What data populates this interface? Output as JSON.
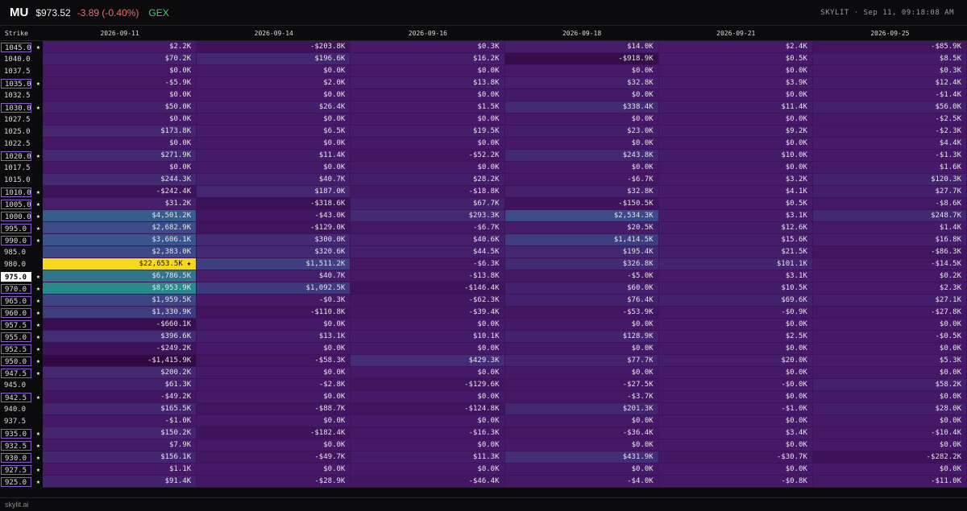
{
  "header": {
    "ticker": "MU",
    "price": "$973.52",
    "change": "-3.89 (-0.40%)",
    "metric": "GEX",
    "brand": "SKYLIT · Sep 11, 09:18:08 AM"
  },
  "table": {
    "columns": [
      "Strike",
      "2026-09-11",
      "2026-09-14",
      "2026-09-16",
      "2026-09-18",
      "2026-09-21",
      "2026-09-25"
    ],
    "rows": [
      {
        "strike": "1045.0",
        "star": "★",
        "values": [
          "$2.2K",
          "-$203.8K",
          "$0.3K",
          "$14.0K",
          "$2.4K",
          "-$85.9K"
        ]
      },
      {
        "strike": "1040.0",
        "values": [
          "$70.2K",
          "$196.6K",
          "$16.2K",
          "-$918.9K",
          "$0.5K",
          "$8.5K"
        ]
      },
      {
        "strike": "1037.5",
        "values": [
          "$0.0K",
          "$0.0K",
          "$0.0K",
          "$0.0K",
          "$0.0K",
          "$0.3K"
        ]
      },
      {
        "strike": "1035.0",
        "star": "★",
        "values": [
          "-$5.9K",
          "$2.0K",
          "$13.8K",
          "$32.8K",
          "$3.9K",
          "$12.4K"
        ]
      },
      {
        "strike": "1032.5",
        "values": [
          "$0.0K",
          "$0.0K",
          "$0.0K",
          "$0.0K",
          "$0.0K",
          "-$1.4K"
        ]
      },
      {
        "strike": "1030.0",
        "star": "★",
        "values": [
          "$50.0K",
          "$26.4K",
          "$1.5K",
          "$338.4K",
          "$11.4K",
          "$56.0K"
        ]
      },
      {
        "strike": "1027.5",
        "values": [
          "$0.0K",
          "$0.0K",
          "$0.0K",
          "$0.0K",
          "$0.0K",
          "-$2.5K"
        ]
      },
      {
        "strike": "1025.0",
        "values": [
          "$173.8K",
          "$6.5K",
          "$19.5K",
          "$23.0K",
          "$9.2K",
          "-$2.3K"
        ]
      },
      {
        "strike": "1022.5",
        "values": [
          "$0.0K",
          "$0.0K",
          "$0.0K",
          "$0.0K",
          "$0.0K",
          "$4.4K"
        ]
      },
      {
        "strike": "1020.0",
        "star": "★",
        "values": [
          "$271.9K",
          "$11.4K",
          "-$52.2K",
          "$243.8K",
          "$10.0K",
          "-$1.3K"
        ]
      },
      {
        "strike": "1017.5",
        "values": [
          "$0.0K",
          "$0.0K",
          "$0.0K",
          "$0.0K",
          "$0.0K",
          "$1.6K"
        ]
      },
      {
        "strike": "1015.0",
        "values": [
          "$244.3K",
          "$40.7K",
          "$28.2K",
          "-$6.7K",
          "$3.2K",
          "$120.3K"
        ]
      },
      {
        "strike": "1010.0",
        "star": "★",
        "values": [
          "-$242.4K",
          "$187.0K",
          "-$18.8K",
          "$32.8K",
          "$4.1K",
          "$27.7K"
        ]
      },
      {
        "strike": "1005.0",
        "star": "★",
        "values": [
          "$31.2K",
          "-$318.6K",
          "$67.7K",
          "-$150.5K",
          "$0.5K",
          "-$8.6K"
        ]
      },
      {
        "strike": "1000.0",
        "star": "★",
        "values": [
          "$4,501.2K",
          "-$43.0K",
          "$293.3K",
          "$2,534.3K",
          "$3.1K",
          "$248.7K"
        ]
      },
      {
        "strike": "995.0",
        "star": "★",
        "values": [
          "$2,682.9K",
          "-$129.0K",
          "-$6.7K",
          "$20.5K",
          "$12.6K",
          "$1.4K"
        ]
      },
      {
        "strike": "990.0",
        "star": "★",
        "values": [
          "$3,606.1K",
          "$300.0K",
          "$40.6K",
          "$1,414.5K",
          "$15.6K",
          "$16.8K"
        ]
      },
      {
        "strike": "985.0",
        "values": [
          "$2,383.0K",
          "$320.6K",
          "$44.5K",
          "$195.4K",
          "$21.5K",
          "-$86.3K"
        ]
      },
      {
        "strike": "980.0",
        "cell_star": "★",
        "values": [
          "$22,653.5K",
          "$1,511.2K",
          "-$6.3K",
          "$326.8K",
          "$101.1K",
          "-$14.5K"
        ]
      },
      {
        "strike": "975.0",
        "star": "★",
        "values": [
          "$6,786.5K",
          "$40.7K",
          "-$13.8K",
          "-$5.0K",
          "$3.1K",
          "$0.2K"
        ]
      },
      {
        "strike": "970.0",
        "star": "★",
        "values": [
          "$8,953.9K",
          "$1,092.5K",
          "-$146.4K",
          "$60.0K",
          "$10.5K",
          "$2.3K"
        ]
      },
      {
        "strike": "965.0",
        "star": "★",
        "values": [
          "$1,959.5K",
          "-$0.3K",
          "-$62.3K",
          "$76.4K",
          "$69.6K",
          "$27.1K"
        ]
      },
      {
        "strike": "960.0",
        "star": "★",
        "values": [
          "$1,330.9K",
          "-$110.8K",
          "-$39.4K",
          "-$53.9K",
          "-$0.9K",
          "-$27.8K"
        ]
      },
      {
        "strike": "957.5",
        "star": "★",
        "values": [
          "-$660.1K",
          "$0.0K",
          "$0.0K",
          "$0.0K",
          "$0.0K",
          "$0.0K"
        ]
      },
      {
        "strike": "955.0",
        "star": "★",
        "values": [
          "$396.6K",
          "$13.1K",
          "$10.1K",
          "$128.9K",
          "$2.5K",
          "-$0.5K"
        ]
      },
      {
        "strike": "952.5",
        "star": "★",
        "values": [
          "-$249.2K",
          "$0.0K",
          "$0.0K",
          "$0.0K",
          "$0.0K",
          "$0.0K"
        ]
      },
      {
        "strike": "950.0",
        "star": "★",
        "values": [
          "-$1,415.9K",
          "-$58.3K",
          "$429.3K",
          "$77.7K",
          "$20.0K",
          "$5.3K"
        ]
      },
      {
        "strike": "947.5",
        "star": "★",
        "values": [
          "$200.2K",
          "$0.0K",
          "$0.0K",
          "$0.0K",
          "$0.0K",
          "$0.0K"
        ]
      },
      {
        "strike": "945.0",
        "values": [
          "$61.3K",
          "-$2.8K",
          "-$129.6K",
          "-$27.5K",
          "-$0.0K",
          "$58.2K"
        ]
      },
      {
        "strike": "942.5",
        "star": "★",
        "values": [
          "-$49.2K",
          "$0.0K",
          "$0.0K",
          "-$3.7K",
          "$0.0K",
          "$0.0K"
        ]
      },
      {
        "strike": "940.0",
        "values": [
          "$165.5K",
          "-$88.7K",
          "-$124.8K",
          "$201.3K",
          "-$1.0K",
          "$28.0K"
        ]
      },
      {
        "strike": "937.5",
        "values": [
          "-$1.0K",
          "$0.0K",
          "$0.0K",
          "$0.0K",
          "$0.0K",
          "$0.0K"
        ]
      },
      {
        "strike": "935.0",
        "star": "★",
        "values": [
          "$150.2K",
          "-$182.4K",
          "-$16.3K",
          "-$36.4K",
          "$3.4K",
          "-$10.4K"
        ]
      },
      {
        "strike": "932.5",
        "star": "★",
        "values": [
          "$7.9K",
          "$0.0K",
          "$0.0K",
          "$0.0K",
          "$0.0K",
          "$0.0K"
        ]
      },
      {
        "strike": "930.0",
        "star": "★",
        "values": [
          "$156.1K",
          "-$49.7K",
          "$11.3K",
          "$431.9K",
          "-$30.7K",
          "-$282.2K"
        ]
      },
      {
        "strike": "927.5",
        "star": "★",
        "values": [
          "$1.1K",
          "$0.0K",
          "$0.0K",
          "$0.0K",
          "$0.0K",
          "$0.0K"
        ]
      },
      {
        "strike": "925.0",
        "star": "★",
        "values": [
          "$91.4K",
          "-$28.9K",
          "-$46.4K",
          "-$4.0K",
          "-$0.8K",
          "-$11.0K"
        ]
      }
    ]
  },
  "footer": {
    "site": "skylit.ai"
  }
}
